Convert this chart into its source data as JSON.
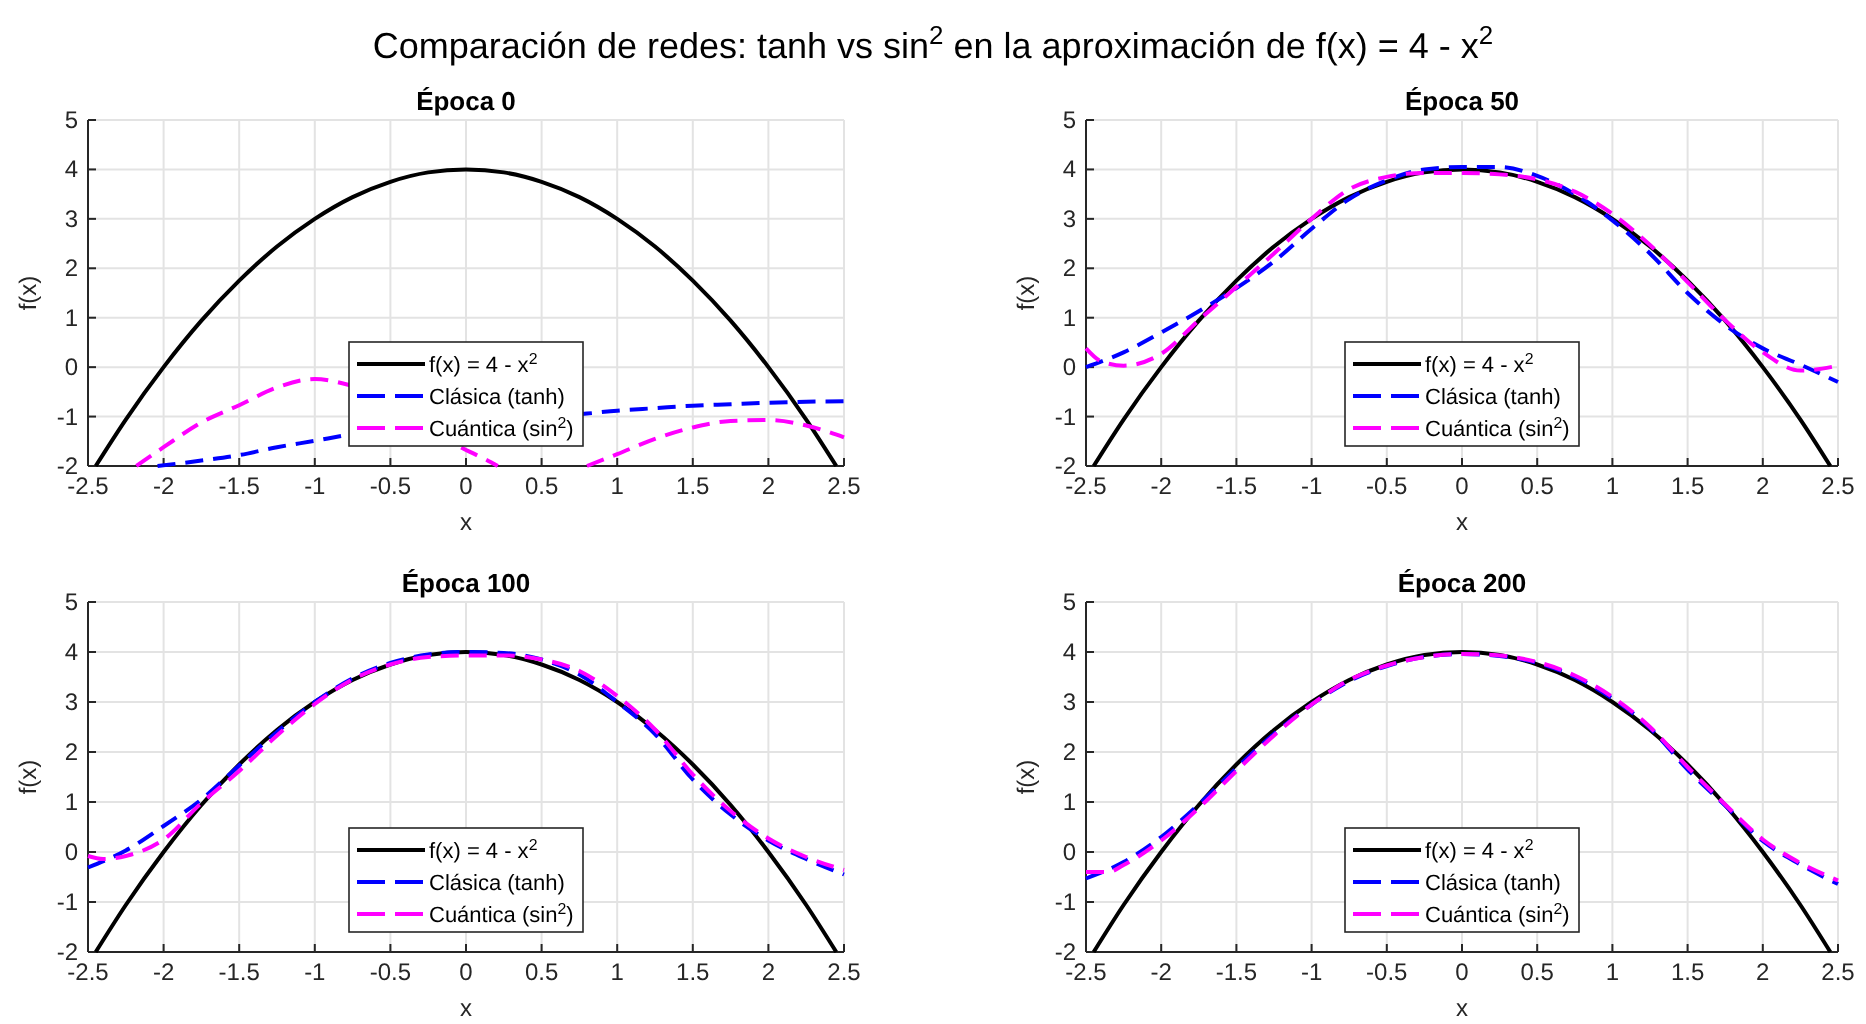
{
  "chart_data": [
    {
      "type": "other",
      "title": "Comparación de redes: tanh vs sin$^{2}$ en la aproximación de f(x) = 4 - x$^{2}$"
    },
    {
      "type": "line",
      "title": "Época 0",
      "xlabel": "x",
      "ylabel": "f(x)",
      "xlim": [
        -2.5,
        2.5
      ],
      "ylim": [
        -2,
        5
      ],
      "xticks": [
        -2.5,
        -2,
        -1.5,
        -1,
        -0.5,
        0,
        0.5,
        1,
        1.5,
        2,
        2.5
      ],
      "yticks": [
        -2,
        -1,
        0,
        1,
        2,
        3,
        4,
        5
      ],
      "grid": true,
      "legend": "bottom",
      "series": [
        {
          "name": "f(x) = 4 - x$^{2}$",
          "color": "#000000",
          "line_style": "solid",
          "x": [
            -2.449,
            -2.25,
            -2,
            -1.75,
            -1.5,
            -1.25,
            -1,
            -0.75,
            -0.5,
            -0.25,
            0,
            0.25,
            0.5,
            0.75,
            1,
            1.25,
            1.5,
            1.75,
            2,
            2.25,
            2.449
          ],
          "values": [
            -2,
            -1.06,
            0,
            0.94,
            1.75,
            2.44,
            3,
            3.44,
            3.75,
            3.94,
            4,
            3.94,
            3.75,
            3.44,
            3,
            2.44,
            1.75,
            0.94,
            0,
            -1.06,
            -2
          ]
        },
        {
          "name": "Clásica (tanh)",
          "color": "#0000ff",
          "line_style": "dashed",
          "x": [
            -2.04,
            -1.75,
            -1.5,
            -1.25,
            -1,
            -0.8,
            0.8,
            1,
            1.25,
            1.5,
            1.75,
            2,
            2.25,
            2.5
          ],
          "values": [
            -2,
            -1.89,
            -1.78,
            -1.62,
            -1.49,
            -1.38,
            -0.94,
            -0.88,
            -0.83,
            -0.78,
            -0.75,
            -0.72,
            -0.7,
            -0.69
          ]
        },
        {
          "name": "Cuántica (sin$^{2}$)",
          "color": "#ff00ff",
          "line_style": "dashed",
          "x": [
            -2.18,
            -2,
            -1.75,
            -1.5,
            -1.25,
            -1,
            -0.8,
            0.03,
            0.12,
            0.21,
            0.5,
            0.8,
            1,
            1.25,
            1.5,
            1.75,
            2,
            2.25,
            2.5
          ],
          "values": [
            -2,
            -1.62,
            -1.12,
            -0.77,
            -0.41,
            -0.24,
            -0.34,
            -1.72,
            -1.85,
            -2,
            null,
            -2,
            -1.76,
            -1.45,
            -1.22,
            -1.09,
            -1.07,
            -1.18,
            -1.42
          ]
        }
      ]
    },
    {
      "type": "line",
      "title": "Época 50",
      "xlabel": "x",
      "ylabel": "f(x)",
      "xlim": [
        -2.5,
        2.5
      ],
      "ylim": [
        -2,
        5
      ],
      "xticks": [
        -2.5,
        -2,
        -1.5,
        -1,
        -0.5,
        0,
        0.5,
        1,
        1.5,
        2,
        2.5
      ],
      "yticks": [
        -2,
        -1,
        0,
        1,
        2,
        3,
        4,
        5
      ],
      "grid": true,
      "legend": "bottom",
      "series": [
        {
          "name": "f(x) = 4 - x$^{2}$",
          "color": "#000000",
          "line_style": "solid",
          "x": [
            -2.449,
            -2.25,
            -2,
            -1.75,
            -1.5,
            -1.25,
            -1,
            -0.75,
            -0.5,
            -0.25,
            0,
            0.25,
            0.5,
            0.75,
            1,
            1.25,
            1.5,
            1.75,
            2,
            2.25,
            2.449
          ],
          "values": [
            -2,
            -1.06,
            0,
            0.94,
            1.75,
            2.44,
            3,
            3.44,
            3.75,
            3.94,
            4,
            3.94,
            3.75,
            3.44,
            3,
            2.44,
            1.75,
            0.94,
            0,
            -1.06,
            -2
          ]
        },
        {
          "name": "Clásica (tanh)",
          "color": "#0000ff",
          "line_style": "dashed",
          "x": [
            -2.5,
            -2.25,
            -2,
            -1.75,
            -1.5,
            -1.25,
            -1,
            -0.75,
            -0.5,
            -0.25,
            0,
            0.25,
            0.5,
            0.75,
            1,
            1.25,
            1.5,
            1.75,
            2,
            2.25,
            2.5
          ],
          "values": [
            0,
            0.3,
            0.7,
            1.13,
            1.6,
            2.14,
            2.8,
            3.4,
            3.78,
            4,
            4.05,
            4.05,
            3.87,
            3.5,
            2.97,
            2.3,
            1.5,
            0.85,
            0.38,
            0.05,
            -0.3
          ]
        },
        {
          "name": "Cuántica (sin$^{2}$)",
          "color": "#ff00ff",
          "line_style": "dashed",
          "x": [
            -2.5,
            -2.4,
            -2.25,
            -2,
            -1.75,
            -1.5,
            -1.25,
            -1,
            -0.75,
            -0.5,
            -0.25,
            0,
            0.25,
            0.5,
            0.75,
            1,
            1.25,
            1.5,
            1.75,
            2,
            2.25,
            2.5
          ],
          "values": [
            0.38,
            0.12,
            0.03,
            0.27,
            0.95,
            1.62,
            2.3,
            3,
            3.6,
            3.85,
            3.93,
            3.93,
            3.9,
            3.8,
            3.55,
            3.1,
            2.47,
            1.72,
            0.95,
            0.3,
            -0.07,
            0.03
          ]
        }
      ]
    },
    {
      "type": "line",
      "title": "Época 100",
      "xlabel": "x",
      "ylabel": "f(x)",
      "xlim": [
        -2.5,
        2.5
      ],
      "ylim": [
        -2,
        5
      ],
      "xticks": [
        -2.5,
        -2,
        -1.5,
        -1,
        -0.5,
        0,
        0.5,
        1,
        1.5,
        2,
        2.5
      ],
      "yticks": [
        -2,
        -1,
        0,
        1,
        2,
        3,
        4,
        5
      ],
      "grid": true,
      "legend": "bottom",
      "series": [
        {
          "name": "f(x) = 4 - x$^{2}$",
          "color": "#000000",
          "line_style": "solid",
          "x": [
            -2.449,
            -2.25,
            -2,
            -1.75,
            -1.5,
            -1.25,
            -1,
            -0.75,
            -0.5,
            -0.25,
            0,
            0.25,
            0.5,
            0.75,
            1,
            1.25,
            1.5,
            1.75,
            2,
            2.25,
            2.449
          ],
          "values": [
            -2,
            -1.06,
            0,
            0.94,
            1.75,
            2.44,
            3,
            3.44,
            3.75,
            3.94,
            4,
            3.94,
            3.75,
            3.44,
            3,
            2.44,
            1.75,
            0.94,
            0,
            -1.06,
            -2
          ]
        },
        {
          "name": "Clásica (tanh)",
          "color": "#0000ff",
          "line_style": "dashed",
          "x": [
            -2.5,
            -2.25,
            -2,
            -1.75,
            -1.5,
            -1.25,
            -1,
            -0.75,
            -0.5,
            -0.25,
            0,
            0.25,
            0.5,
            0.75,
            1,
            1.25,
            1.5,
            1.75,
            2,
            2.25,
            2.5
          ],
          "values": [
            -0.31,
            0.03,
            0.52,
            1.05,
            1.73,
            2.4,
            3,
            3.47,
            3.78,
            3.95,
            4,
            3.98,
            3.85,
            3.55,
            3,
            2.36,
            1.45,
            0.75,
            0.23,
            -0.14,
            -0.45
          ]
        },
        {
          "name": "Cuántica (sin$^{2}$)",
          "color": "#ff00ff",
          "line_style": "dashed",
          "x": [
            -2.5,
            -2.4,
            -2.25,
            -2,
            -1.75,
            -1.5,
            -1.25,
            -1,
            -0.75,
            -0.5,
            -0.25,
            0,
            0.25,
            0.5,
            0.75,
            1,
            1.25,
            1.5,
            1.75,
            2,
            2.25,
            2.5
          ],
          "values": [
            -0.08,
            -0.14,
            -0.08,
            0.25,
            0.98,
            1.62,
            2.33,
            2.96,
            3.45,
            3.75,
            3.9,
            3.93,
            3.93,
            3.85,
            3.62,
            3.12,
            2.45,
            1.55,
            0.82,
            0.27,
            -0.1,
            -0.36
          ]
        }
      ]
    },
    {
      "type": "line",
      "title": "Época 200",
      "xlabel": "x",
      "ylabel": "f(x)",
      "xlim": [
        -2.5,
        2.5
      ],
      "ylim": [
        -2,
        5
      ],
      "xticks": [
        -2.5,
        -2,
        -1.5,
        -1,
        -0.5,
        0,
        0.5,
        1,
        1.5,
        2,
        2.5
      ],
      "yticks": [
        -2,
        -1,
        0,
        1,
        2,
        3,
        4,
        5
      ],
      "grid": true,
      "legend": "bottom",
      "series": [
        {
          "name": "f(x) = 4 - x$^{2}$",
          "color": "#000000",
          "line_style": "solid",
          "x": [
            -2.449,
            -2.25,
            -2,
            -1.75,
            -1.5,
            -1.25,
            -1,
            -0.75,
            -0.5,
            -0.25,
            0,
            0.25,
            0.5,
            0.75,
            1,
            1.25,
            1.5,
            1.75,
            2,
            2.25,
            2.449
          ],
          "values": [
            -2,
            -1.06,
            0,
            0.94,
            1.75,
            2.44,
            3,
            3.44,
            3.75,
            3.94,
            4,
            3.94,
            3.75,
            3.44,
            3,
            2.44,
            1.75,
            0.94,
            0,
            -1.06,
            -2
          ]
        },
        {
          "name": "Clásica (tanh)",
          "color": "#0000ff",
          "line_style": "dashed",
          "x": [
            -2.5,
            -2.25,
            -2,
            -1.75,
            -1.5,
            -1.25,
            -1,
            -0.75,
            -0.5,
            -0.25,
            0,
            0.25,
            0.5,
            0.75,
            1,
            1.25,
            1.5,
            1.75,
            2,
            2.25,
            2.5
          ],
          "values": [
            -0.53,
            -0.2,
            0.3,
            0.95,
            1.68,
            2.36,
            2.95,
            3.42,
            3.72,
            3.9,
            3.96,
            3.92,
            3.78,
            3.5,
            3.07,
            2.48,
            1.65,
            0.93,
            0.22,
            -0.25,
            -0.64
          ]
        },
        {
          "name": "Cuántica (sin$^{2}$)",
          "color": "#ff00ff",
          "line_style": "dashed",
          "x": [
            -2.5,
            -2.35,
            -2.25,
            -2,
            -1.75,
            -1.5,
            -1.25,
            -1,
            -0.75,
            -0.5,
            -0.25,
            0,
            0.25,
            0.5,
            0.75,
            1,
            1.25,
            1.5,
            1.75,
            2,
            2.25,
            2.5
          ],
          "values": [
            -0.4,
            -0.4,
            -0.26,
            0.23,
            0.88,
            1.62,
            2.33,
            2.95,
            3.44,
            3.73,
            3.9,
            3.96,
            3.93,
            3.8,
            3.53,
            3.1,
            2.5,
            1.7,
            0.95,
            0.25,
            -0.22,
            -0.57
          ]
        }
      ]
    }
  ]
}
